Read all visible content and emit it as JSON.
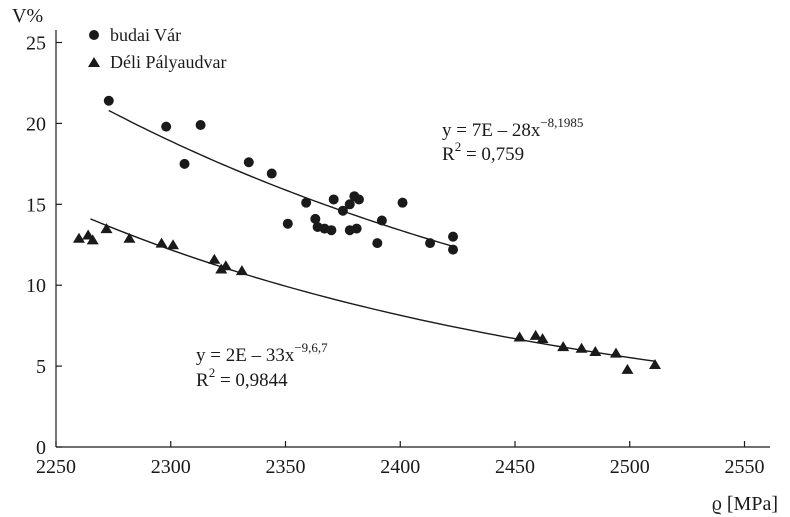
{
  "chart_data": {
    "type": "scatter",
    "title": "",
    "xlabel": "ϱ [MPa]",
    "ylabel": "V%",
    "xlim": [
      2250,
      2560
    ],
    "ylim": [
      0,
      26
    ],
    "xticks": [
      2250,
      2300,
      2350,
      2400,
      2450,
      2500,
      2550
    ],
    "yticks": [
      0,
      5,
      10,
      15,
      20,
      25
    ],
    "grid": false,
    "legend_position": "top-left",
    "series": [
      {
        "name": "budai Vár",
        "marker": "circle",
        "color": "#1a1a1a",
        "points": [
          [
            2273,
            21.4
          ],
          [
            2298,
            19.8
          ],
          [
            2306,
            17.5
          ],
          [
            2313,
            19.9
          ],
          [
            2334,
            17.6
          ],
          [
            2344,
            16.9
          ],
          [
            2351,
            13.8
          ],
          [
            2359,
            15.1
          ],
          [
            2363,
            14.1
          ],
          [
            2364,
            13.6
          ],
          [
            2367,
            13.5
          ],
          [
            2370,
            13.4
          ],
          [
            2371,
            15.3
          ],
          [
            2375,
            14.6
          ],
          [
            2378,
            15.0
          ],
          [
            2378,
            13.4
          ],
          [
            2380,
            15.5
          ],
          [
            2381,
            13.5
          ],
          [
            2382,
            15.3
          ],
          [
            2390,
            12.6
          ],
          [
            2392,
            14.0
          ],
          [
            2401,
            15.1
          ],
          [
            2413,
            12.6
          ],
          [
            2423,
            12.2
          ],
          [
            2423,
            13.0
          ]
        ],
        "fit": {
          "x": [
            2273,
            2423
          ],
          "y": [
            20.8,
            12.4
          ]
        }
      },
      {
        "name": "Déli Pályaudvar",
        "marker": "triangle",
        "color": "#1a1a1a",
        "points": [
          [
            2260,
            12.9
          ],
          [
            2264,
            13.1
          ],
          [
            2266,
            12.8
          ],
          [
            2272,
            13.5
          ],
          [
            2282,
            12.9
          ],
          [
            2296,
            12.6
          ],
          [
            2301,
            12.5
          ],
          [
            2319,
            11.6
          ],
          [
            2322,
            11.0
          ],
          [
            2324,
            11.2
          ],
          [
            2331,
            10.9
          ],
          [
            2452,
            6.8
          ],
          [
            2459,
            6.9
          ],
          [
            2462,
            6.7
          ],
          [
            2471,
            6.2
          ],
          [
            2479,
            6.1
          ],
          [
            2485,
            5.9
          ],
          [
            2494,
            5.8
          ],
          [
            2499,
            4.8
          ],
          [
            2511,
            5.1
          ]
        ],
        "fit": {
          "x": [
            2265,
            2511
          ],
          "y": [
            14.1,
            5.3
          ]
        }
      }
    ],
    "annotations": [
      {
        "line1_base": "y = 7E – 28x",
        "line1_exp": "−8,1985",
        "line2_base": "R",
        "line2_exp": "2",
        "line2_value": " = 0,759"
      },
      {
        "line1_base": "y = 2E – 33x",
        "line1_exp": "−9,6,7",
        "line2_base": "R",
        "line2_exp": "2",
        "line2_value": " = 0,9844"
      }
    ]
  }
}
